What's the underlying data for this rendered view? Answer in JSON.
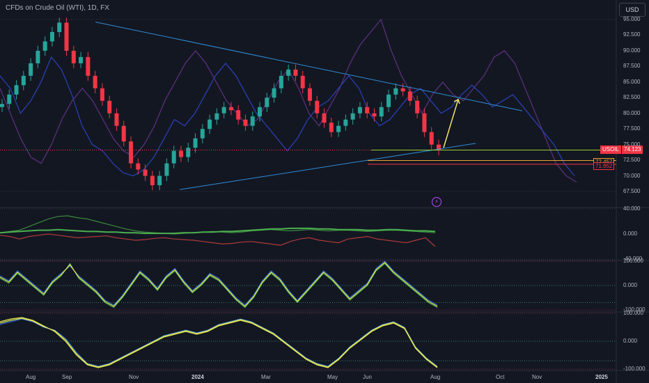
{
  "header": {
    "title": "CFDs on Crude Oil (WTI), 1D, FX",
    "currency_button": "USD"
  },
  "price_tag": {
    "symbol": "USOIL",
    "value": "74.123"
  },
  "level_labels": [
    "72.457",
    "71.852"
  ],
  "x_axis": {
    "labels": [
      "Aug",
      "Sep",
      "Nov",
      "2024",
      "Mar",
      "May",
      "Jun",
      "Aug",
      "Oct",
      "Nov",
      "2025"
    ]
  },
  "colors": {
    "up": "#26a69a",
    "down": "#f23645",
    "trend": "#2f8cd6",
    "blue_line": "#2a3fb0",
    "purple_line": "#5a2f7a",
    "green": "#4caf50",
    "yellow": "#e8e84a",
    "arrow": "#f5e663"
  },
  "chart_data": [
    {
      "type": "candlestick",
      "title": "CFDs on Crude Oil (WTI), 1D, FX",
      "x": [
        "Aug",
        "Sep",
        "Nov",
        "2024",
        "Mar",
        "May",
        "Jun",
        "Aug",
        "Oct",
        "Nov",
        "2025"
      ],
      "ylim": [
        67.5,
        95.0
      ],
      "yticks": [
        "95.000",
        "92.500",
        "90.000",
        "87.500",
        "85.000",
        "82.500",
        "80.000",
        "77.500",
        "75.000",
        "72.500",
        "70.000",
        "67.500"
      ],
      "last_price": 74.123,
      "levels": [
        74.123,
        72.457,
        71.852
      ],
      "close_path": [
        81.5,
        83,
        84.5,
        86,
        88,
        90,
        91.5,
        93,
        94.5,
        90,
        88,
        89,
        86,
        84,
        82,
        80,
        78,
        75.5,
        72,
        71,
        70,
        68.5,
        70,
        72,
        74,
        73,
        74.5,
        76,
        77.5,
        79,
        80,
        81,
        80.5,
        79,
        78,
        79.5,
        81,
        82.5,
        84,
        86,
        87,
        86,
        84,
        82,
        80,
        78.5,
        77,
        78,
        79,
        80,
        81,
        80,
        79.5,
        81,
        83,
        84,
        83.5,
        82,
        80,
        77,
        75,
        74.1
      ],
      "overlay_blue": [
        86,
        84,
        80,
        82,
        85,
        89,
        87,
        83,
        78,
        75,
        74,
        72,
        70.5,
        70,
        71,
        73,
        76,
        79,
        78,
        80,
        83,
        86,
        88,
        86,
        83,
        80,
        78,
        76,
        74,
        76,
        79,
        81,
        82,
        84,
        86,
        84,
        80,
        78,
        79,
        81,
        83,
        84,
        82,
        80,
        81,
        83,
        84.5,
        83,
        81,
        82,
        83,
        81,
        79,
        77,
        75,
        72,
        70
      ],
      "overlay_purple": [
        84,
        80,
        76,
        73,
        72,
        75,
        79,
        82,
        84,
        82,
        79,
        76,
        74,
        73,
        75,
        78,
        82,
        85,
        88,
        90,
        88,
        85,
        82,
        80,
        78,
        79,
        82,
        85,
        87,
        84,
        80,
        78,
        81,
        84,
        88,
        91,
        93,
        95,
        90,
        86,
        83,
        80,
        83,
        85,
        83,
        82,
        84,
        86,
        89,
        90,
        88,
        84,
        80,
        76,
        72,
        70,
        69
      ]
    },
    {
      "type": "line",
      "ylim": [
        -40,
        40
      ],
      "yticks": [
        "40.000",
        "0.000",
        "-40.000"
      ],
      "series": [
        {
          "values": [
            2,
            4,
            6,
            12,
            18,
            24,
            28,
            29,
            26,
            24,
            20,
            16,
            12,
            8,
            5,
            3,
            2,
            1,
            0,
            1,
            2,
            3,
            4,
            3,
            2,
            3,
            5,
            6,
            7,
            6,
            5,
            6,
            7,
            6,
            5,
            6,
            6,
            5,
            4,
            5,
            6,
            6,
            5,
            4,
            3,
            2
          ]
        },
        {
          "values": [
            -2,
            -4,
            -8,
            -4,
            -2,
            0,
            -2,
            -4,
            -6,
            -5,
            -4,
            -3,
            -6,
            -8,
            -10,
            -9,
            -7,
            -6,
            -8,
            -9,
            -10,
            -12,
            -14,
            -16,
            -15,
            -13,
            -12,
            -14,
            -16,
            -18,
            -12,
            -8,
            -6,
            -10,
            -12,
            -14,
            -8,
            -6,
            -4,
            -8,
            -10,
            -12,
            -14,
            -10,
            -6,
            -20
          ]
        },
        {
          "values": [
            2,
            3,
            4,
            5,
            6,
            6,
            7,
            6,
            5,
            4,
            4,
            3,
            3,
            2,
            2,
            1,
            1,
            1,
            1,
            2,
            2,
            3,
            3,
            4,
            4,
            5,
            6,
            7,
            8,
            8,
            9,
            9,
            9,
            8,
            8,
            7,
            7,
            7,
            6,
            6,
            7,
            7,
            6,
            5,
            5,
            4
          ]
        }
      ]
    },
    {
      "type": "line",
      "ylim": [
        -100,
        100
      ],
      "yticks": [
        "100.000",
        "0.000",
        "-100.000"
      ],
      "series": [
        {
          "values": [
            40,
            20,
            60,
            30,
            0,
            -30,
            20,
            50,
            80,
            40,
            10,
            -20,
            -60,
            -80,
            -40,
            10,
            60,
            30,
            -10,
            40,
            70,
            20,
            -20,
            10,
            50,
            30,
            -10,
            -50,
            -80,
            -40,
            20,
            60,
            30,
            -20,
            -60,
            -20,
            20,
            60,
            30,
            -10,
            -50,
            -20,
            10,
            70,
            100,
            60,
            30,
            0,
            -30,
            -60,
            -80
          ]
        },
        {
          "values": [
            30,
            10,
            50,
            20,
            -10,
            -40,
            10,
            40,
            90,
            30,
            0,
            -30,
            -70,
            -90,
            -50,
            0,
            50,
            20,
            -20,
            30,
            60,
            10,
            -30,
            0,
            40,
            20,
            -20,
            -60,
            -90,
            -50,
            10,
            50,
            20,
            -30,
            -70,
            -30,
            10,
            50,
            20,
            -20,
            -60,
            -30,
            0,
            60,
            90,
            50,
            20,
            -10,
            -40,
            -70,
            -90
          ]
        },
        {
          "values": [
            35,
            15,
            55,
            25,
            -5,
            -35,
            15,
            45,
            85,
            35,
            5,
            -25,
            -65,
            -85,
            -45,
            5,
            55,
            25,
            -15,
            35,
            65,
            15,
            -25,
            5,
            45,
            25,
            -15,
            -55,
            -85,
            -45,
            15,
            55,
            25,
            -25,
            -65,
            -25,
            15,
            55,
            25,
            -15,
            -55,
            -25,
            5,
            65,
            95,
            55,
            25,
            -5,
            -35,
            -65,
            -85
          ]
        }
      ]
    },
    {
      "type": "line",
      "ylim": [
        -100,
        100
      ],
      "yticks": [
        "100.000",
        "0.000",
        "-100.000"
      ],
      "series": [
        {
          "values": [
            60,
            70,
            80,
            70,
            50,
            40,
            10,
            -40,
            -80,
            -90,
            -80,
            -60,
            -40,
            -20,
            0,
            20,
            30,
            40,
            30,
            40,
            60,
            70,
            80,
            70,
            50,
            30,
            0,
            -30,
            -60,
            -80,
            -90,
            -60,
            -20,
            10,
            40,
            60,
            70,
            50,
            -20,
            -60,
            -90
          ]
        },
        {
          "values": [
            70,
            80,
            85,
            75,
            55,
            35,
            0,
            -50,
            -85,
            -95,
            -85,
            -65,
            -45,
            -25,
            -5,
            15,
            25,
            35,
            25,
            35,
            55,
            65,
            75,
            65,
            45,
            25,
            -5,
            -35,
            -65,
            -85,
            -95,
            -65,
            -25,
            5,
            35,
            55,
            65,
            45,
            -25,
            -65,
            -95
          ]
        },
        {
          "values": [
            65,
            75,
            82,
            72,
            52,
            38,
            5,
            -45,
            -82,
            -92,
            -82,
            -62,
            -42,
            -22,
            -2,
            18,
            28,
            38,
            28,
            38,
            58,
            68,
            78,
            68,
            48,
            28,
            -2,
            -32,
            -62,
            -82,
            -92,
            -62,
            -22,
            8,
            38,
            58,
            68,
            48,
            -22,
            -62,
            -92
          ]
        }
      ]
    }
  ]
}
